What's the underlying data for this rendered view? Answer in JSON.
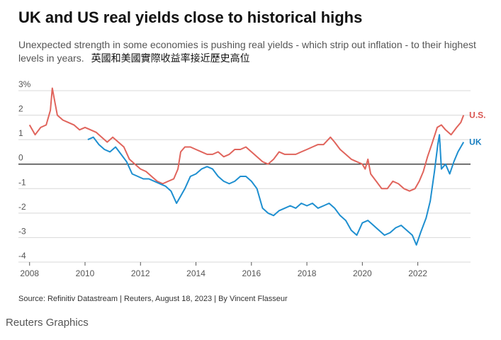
{
  "title": "UK and US real yields close to historical highs",
  "subtitle": "Unexpected strength in some economies is pushing real yields - which strip out inflation - to their highest levels in years.",
  "subtitle_cjk": "英國和美國實際收益率接近歷史高位",
  "source": "Source: Refinitiv Datastream | Reuters, August 18, 2023 | By Vincent Flasseur",
  "brand": "Reuters Graphics",
  "chart_data": {
    "type": "line",
    "title": "UK and US real yields close to historical highs",
    "y_ticks": [
      "3%",
      "2",
      "1",
      "0",
      "-1",
      "-2",
      "-3",
      "-4"
    ],
    "y_tick_values": [
      3,
      2,
      1,
      0,
      -1,
      -2,
      -3,
      -4
    ],
    "ylim": [
      -4,
      3
    ],
    "xlim": [
      2007.7,
      2023.85
    ],
    "x_ticks": [
      2008,
      2010,
      2012,
      2014,
      2016,
      2018,
      2020,
      2022
    ],
    "grid": true,
    "zero_line": true,
    "legend_placement": "inline labels at right end of lines",
    "series": [
      {
        "name": "U.S.",
        "color": "#e0645c",
        "label_color": "#d9534f",
        "points": [
          [
            2008.0,
            1.6
          ],
          [
            2008.2,
            1.2
          ],
          [
            2008.4,
            1.5
          ],
          [
            2008.6,
            1.6
          ],
          [
            2008.75,
            2.2
          ],
          [
            2008.82,
            3.1
          ],
          [
            2008.9,
            2.6
          ],
          [
            2009.0,
            2.0
          ],
          [
            2009.2,
            1.8
          ],
          [
            2009.4,
            1.7
          ],
          [
            2009.6,
            1.6
          ],
          [
            2009.8,
            1.4
          ],
          [
            2010.0,
            1.5
          ],
          [
            2010.2,
            1.4
          ],
          [
            2010.4,
            1.3
          ],
          [
            2010.6,
            1.1
          ],
          [
            2010.8,
            0.9
          ],
          [
            2011.0,
            1.1
          ],
          [
            2011.2,
            0.9
          ],
          [
            2011.4,
            0.7
          ],
          [
            2011.6,
            0.2
          ],
          [
            2011.8,
            0.0
          ],
          [
            2012.0,
            -0.2
          ],
          [
            2012.2,
            -0.3
          ],
          [
            2012.4,
            -0.5
          ],
          [
            2012.6,
            -0.7
          ],
          [
            2012.8,
            -0.8
          ],
          [
            2013.0,
            -0.7
          ],
          [
            2013.2,
            -0.6
          ],
          [
            2013.35,
            -0.2
          ],
          [
            2013.45,
            0.5
          ],
          [
            2013.6,
            0.7
          ],
          [
            2013.8,
            0.7
          ],
          [
            2014.0,
            0.6
          ],
          [
            2014.2,
            0.5
          ],
          [
            2014.4,
            0.4
          ],
          [
            2014.6,
            0.4
          ],
          [
            2014.8,
            0.5
          ],
          [
            2015.0,
            0.3
          ],
          [
            2015.2,
            0.4
          ],
          [
            2015.4,
            0.6
          ],
          [
            2015.6,
            0.6
          ],
          [
            2015.8,
            0.7
          ],
          [
            2016.0,
            0.5
          ],
          [
            2016.2,
            0.3
          ],
          [
            2016.4,
            0.1
          ],
          [
            2016.6,
            0.0
          ],
          [
            2016.8,
            0.2
          ],
          [
            2017.0,
            0.5
          ],
          [
            2017.2,
            0.4
          ],
          [
            2017.4,
            0.4
          ],
          [
            2017.6,
            0.4
          ],
          [
            2017.8,
            0.5
          ],
          [
            2018.0,
            0.6
          ],
          [
            2018.2,
            0.7
          ],
          [
            2018.4,
            0.8
          ],
          [
            2018.6,
            0.8
          ],
          [
            2018.85,
            1.1
          ],
          [
            2019.0,
            0.9
          ],
          [
            2019.2,
            0.6
          ],
          [
            2019.4,
            0.4
          ],
          [
            2019.6,
            0.2
          ],
          [
            2019.8,
            0.1
          ],
          [
            2020.0,
            0.0
          ],
          [
            2020.1,
            -0.2
          ],
          [
            2020.2,
            0.2
          ],
          [
            2020.3,
            -0.4
          ],
          [
            2020.5,
            -0.7
          ],
          [
            2020.7,
            -1.0
          ],
          [
            2020.9,
            -1.0
          ],
          [
            2021.1,
            -0.7
          ],
          [
            2021.3,
            -0.8
          ],
          [
            2021.5,
            -1.0
          ],
          [
            2021.7,
            -1.1
          ],
          [
            2021.9,
            -1.0
          ],
          [
            2022.05,
            -0.7
          ],
          [
            2022.2,
            -0.3
          ],
          [
            2022.35,
            0.3
          ],
          [
            2022.5,
            0.8
          ],
          [
            2022.7,
            1.5
          ],
          [
            2022.85,
            1.6
          ],
          [
            2023.0,
            1.4
          ],
          [
            2023.2,
            1.2
          ],
          [
            2023.4,
            1.5
          ],
          [
            2023.55,
            1.7
          ],
          [
            2023.65,
            2.0
          ]
        ]
      },
      {
        "name": "UK",
        "color": "#1e8fd0",
        "label_color": "#1a7fc0",
        "points": [
          [
            2010.1,
            1.0
          ],
          [
            2010.3,
            1.1
          ],
          [
            2010.5,
            0.8
          ],
          [
            2010.7,
            0.6
          ],
          [
            2010.9,
            0.5
          ],
          [
            2011.1,
            0.7
          ],
          [
            2011.3,
            0.4
          ],
          [
            2011.5,
            0.1
          ],
          [
            2011.7,
            -0.4
          ],
          [
            2011.9,
            -0.5
          ],
          [
            2012.1,
            -0.6
          ],
          [
            2012.3,
            -0.6
          ],
          [
            2012.5,
            -0.7
          ],
          [
            2012.7,
            -0.8
          ],
          [
            2012.9,
            -0.9
          ],
          [
            2013.1,
            -1.1
          ],
          [
            2013.3,
            -1.6
          ],
          [
            2013.45,
            -1.3
          ],
          [
            2013.6,
            -1.0
          ],
          [
            2013.8,
            -0.5
          ],
          [
            2014.0,
            -0.4
          ],
          [
            2014.2,
            -0.2
          ],
          [
            2014.4,
            -0.1
          ],
          [
            2014.6,
            -0.2
          ],
          [
            2014.8,
            -0.5
          ],
          [
            2015.0,
            -0.7
          ],
          [
            2015.2,
            -0.8
          ],
          [
            2015.4,
            -0.7
          ],
          [
            2015.6,
            -0.5
          ],
          [
            2015.8,
            -0.5
          ],
          [
            2016.0,
            -0.7
          ],
          [
            2016.2,
            -1.0
          ],
          [
            2016.4,
            -1.8
          ],
          [
            2016.6,
            -2.0
          ],
          [
            2016.8,
            -2.1
          ],
          [
            2017.0,
            -1.9
          ],
          [
            2017.2,
            -1.8
          ],
          [
            2017.4,
            -1.7
          ],
          [
            2017.6,
            -1.8
          ],
          [
            2017.8,
            -1.6
          ],
          [
            2018.0,
            -1.7
          ],
          [
            2018.2,
            -1.6
          ],
          [
            2018.4,
            -1.8
          ],
          [
            2018.6,
            -1.7
          ],
          [
            2018.8,
            -1.6
          ],
          [
            2019.0,
            -1.8
          ],
          [
            2019.2,
            -2.1
          ],
          [
            2019.4,
            -2.3
          ],
          [
            2019.6,
            -2.7
          ],
          [
            2019.8,
            -2.9
          ],
          [
            2020.0,
            -2.4
          ],
          [
            2020.2,
            -2.3
          ],
          [
            2020.4,
            -2.5
          ],
          [
            2020.6,
            -2.7
          ],
          [
            2020.8,
            -2.9
          ],
          [
            2021.0,
            -2.8
          ],
          [
            2021.2,
            -2.6
          ],
          [
            2021.4,
            -2.5
          ],
          [
            2021.6,
            -2.7
          ],
          [
            2021.8,
            -2.9
          ],
          [
            2021.95,
            -3.3
          ],
          [
            2022.1,
            -2.8
          ],
          [
            2022.3,
            -2.2
          ],
          [
            2022.45,
            -1.5
          ],
          [
            2022.6,
            -0.3
          ],
          [
            2022.72,
            0.8
          ],
          [
            2022.78,
            1.2
          ],
          [
            2022.85,
            -0.2
          ],
          [
            2023.0,
            0.0
          ],
          [
            2023.15,
            -0.4
          ],
          [
            2023.3,
            0.1
          ],
          [
            2023.45,
            0.5
          ],
          [
            2023.6,
            0.8
          ],
          [
            2023.65,
            0.9
          ]
        ]
      }
    ]
  }
}
